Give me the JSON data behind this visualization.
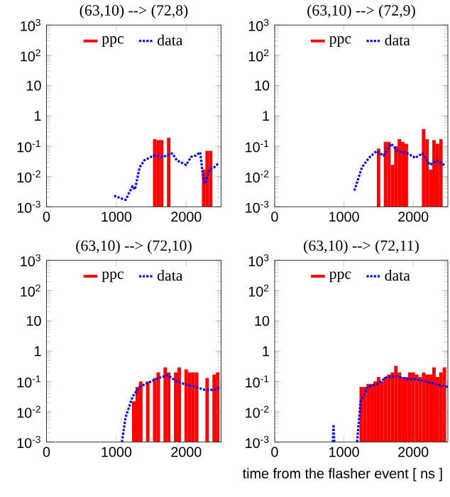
{
  "chart_data": [
    {
      "type": "bar",
      "title": "(63,10) --> (72,8)",
      "log": "y",
      "xlim": [
        0,
        2500
      ],
      "xticks": [
        0,
        1000,
        2000
      ],
      "ylim": [
        0.001,
        1000
      ],
      "yticks": [
        {
          "value": 0.001,
          "label": "10$^{-3}$"
        },
        {
          "value": 0.01,
          "label": "10$^{-2}$"
        },
        {
          "value": 0.1,
          "label": "10$^{-1}$"
        },
        1,
        10,
        {
          "value": 100,
          "label": "10$^{2}$"
        },
        {
          "value": 1000,
          "label": "10$^{3}$"
        }
      ],
      "legend": "top",
      "series": [
        {
          "name": "ppc",
          "color": "#ff0000",
          "x": [
            1550,
            1600,
            1650,
            1750,
            2250,
            2300,
            2350
          ],
          "values": [
            0.17,
            0.16,
            0.16,
            0.19,
            0.017,
            0.07,
            0.07
          ]
        },
        {
          "name": "data",
          "type": "line",
          "line_style": "dotted",
          "color": "#0000ff",
          "x": [
            967,
            1133,
            1233,
            1267,
            1333,
            1400,
            1533,
            1667,
            1800,
            1867,
            2000,
            2067,
            2133,
            2200,
            2233,
            2267,
            2333,
            2400,
            2467
          ],
          "values": [
            0.0023,
            0.0017,
            0.0048,
            0.0037,
            0.02,
            0.034,
            0.049,
            0.044,
            0.058,
            0.034,
            0.024,
            0.044,
            0.049,
            0.063,
            0.014,
            0.0058,
            0.017,
            0.02,
            0.028
          ]
        }
      ]
    },
    {
      "type": "bar",
      "title": "(63,10) --> (72,9)",
      "log": "y",
      "xlim": [
        0,
        2500
      ],
      "xticks": [
        0,
        1000,
        2000
      ],
      "ylim": [
        0.001,
        1000
      ],
      "yticks": [
        {
          "value": 0.001,
          "label": "10$^{-3}$"
        },
        {
          "value": 0.01,
          "label": "10$^{-2}$"
        },
        {
          "value": 0.1,
          "label": "10$^{-1}$"
        },
        1,
        10,
        {
          "value": 100,
          "label": "10$^{2}$"
        },
        {
          "value": 1000,
          "label": "10$^{3}$"
        }
      ],
      "legend": "top",
      "series": [
        {
          "name": "ppc",
          "color": "#ff0000",
          "x": [
            1500,
            1600,
            1650,
            1700,
            1750,
            1800,
            1850,
            1900,
            2150,
            2200,
            2250,
            2300,
            2350,
            2400
          ],
          "values": [
            0.083,
            0.14,
            0.14,
            0.024,
            0.1,
            0.17,
            0.14,
            0.12,
            0.37,
            0.17,
            0.017,
            0.16,
            0.12,
            0.17
          ]
        },
        {
          "name": "data",
          "type": "line",
          "line_style": "dotted",
          "color": "#0000ff",
          "x": [
            1150,
            1260,
            1360,
            1470,
            1570,
            1680,
            1780,
            1920,
            2030,
            2130,
            2240,
            2340,
            2450
          ],
          "values": [
            0.0034,
            0.02,
            0.041,
            0.069,
            0.049,
            0.12,
            0.069,
            0.058,
            0.041,
            0.058,
            0.024,
            0.034,
            0.024
          ]
        }
      ]
    },
    {
      "type": "bar",
      "title": "(63,10) --> (72,10)",
      "log": "y",
      "xlim": [
        0,
        2500
      ],
      "xticks": [
        0,
        1000,
        2000
      ],
      "ylim": [
        0.001,
        1000
      ],
      "yticks": [
        {
          "value": 0.001,
          "label": "10$^{-3}$"
        },
        {
          "value": 0.01,
          "label": "10$^{-2}$"
        },
        {
          "value": 0.1,
          "label": "10$^{-1}$"
        },
        1,
        10,
        {
          "value": 100,
          "label": "10$^{2}$"
        },
        {
          "value": 1000,
          "label": "10$^{3}$"
        }
      ],
      "legend": "top",
      "series": [
        {
          "name": "ppc",
          "color": "#ff0000",
          "x": [
            1250,
            1300,
            1350,
            1450,
            1550,
            1600,
            1700,
            1750,
            1850,
            1900,
            2000,
            2050,
            2100,
            2150,
            2300,
            2400,
            2450
          ],
          "values": [
            0.022,
            0.066,
            0.1,
            0.1,
            0.13,
            0.2,
            0.29,
            0.2,
            0.2,
            0.29,
            0.25,
            0.2,
            0.2,
            0.2,
            0.13,
            0.17,
            0.2
          ]
        },
        {
          "name": "data",
          "type": "line",
          "line_style": "dotted",
          "color": "#0000ff",
          "x": [
            1080,
            1133,
            1233,
            1333,
            1467,
            1600,
            1733,
            1867,
            2000,
            2133,
            2267,
            2400,
            2500
          ],
          "values": [
            0.001,
            0.0066,
            0.032,
            0.066,
            0.093,
            0.13,
            0.16,
            0.1,
            0.078,
            0.066,
            0.053,
            0.053,
            0.066
          ]
        }
      ]
    },
    {
      "type": "bar",
      "title": "(63,10) --> (72,11)",
      "xlabel": "time from the flasher event [ ns ]",
      "log": "y",
      "xlim": [
        0,
        2500
      ],
      "xticks": [
        0,
        1000,
        2000
      ],
      "ylim": [
        0.001,
        1000
      ],
      "yticks": [
        {
          "value": 0.001,
          "label": "10$^{-3}$"
        },
        {
          "value": 0.01,
          "label": "10$^{-2}$"
        },
        {
          "value": 0.1,
          "label": "10$^{-1}$"
        },
        1,
        10,
        {
          "value": 100,
          "label": "10$^{2}$"
        },
        {
          "value": 1000,
          "label": "10$^{3}$"
        }
      ],
      "legend": "top",
      "series": [
        {
          "name": "ppc",
          "color": "#ff0000",
          "x": [
            1250,
            1300,
            1350,
            1400,
            1450,
            1500,
            1550,
            1600,
            1650,
            1700,
            1750,
            1800,
            1850,
            1900,
            1950,
            2000,
            2050,
            2100,
            2150,
            2200,
            2250,
            2300,
            2350,
            2400,
            2450
          ],
          "values": [
            0.066,
            0.066,
            0.083,
            0.083,
            0.1,
            0.14,
            0.1,
            0.14,
            0.17,
            0.2,
            0.33,
            0.2,
            0.14,
            0.14,
            0.2,
            0.2,
            0.17,
            0.14,
            0.2,
            0.17,
            0.17,
            0.29,
            0.14,
            0.2,
            0.29
          ]
        },
        {
          "name": "data",
          "type": "line",
          "line_style": "dotted",
          "color": "#0000ff",
          "x": [
            840,
            850,
            860,
            870,
            1190,
            1240,
            1345,
            1480,
            1620,
            1760,
            1900,
            2030,
            2170,
            2310,
            2450,
            2500
          ],
          "values": [
            0.001,
            0.0038,
            0.001,
            null,
            0.001,
            0.022,
            0.066,
            0.083,
            0.14,
            0.15,
            0.12,
            0.12,
            0.1,
            0.083,
            0.07,
            0.066
          ]
        }
      ]
    }
  ]
}
